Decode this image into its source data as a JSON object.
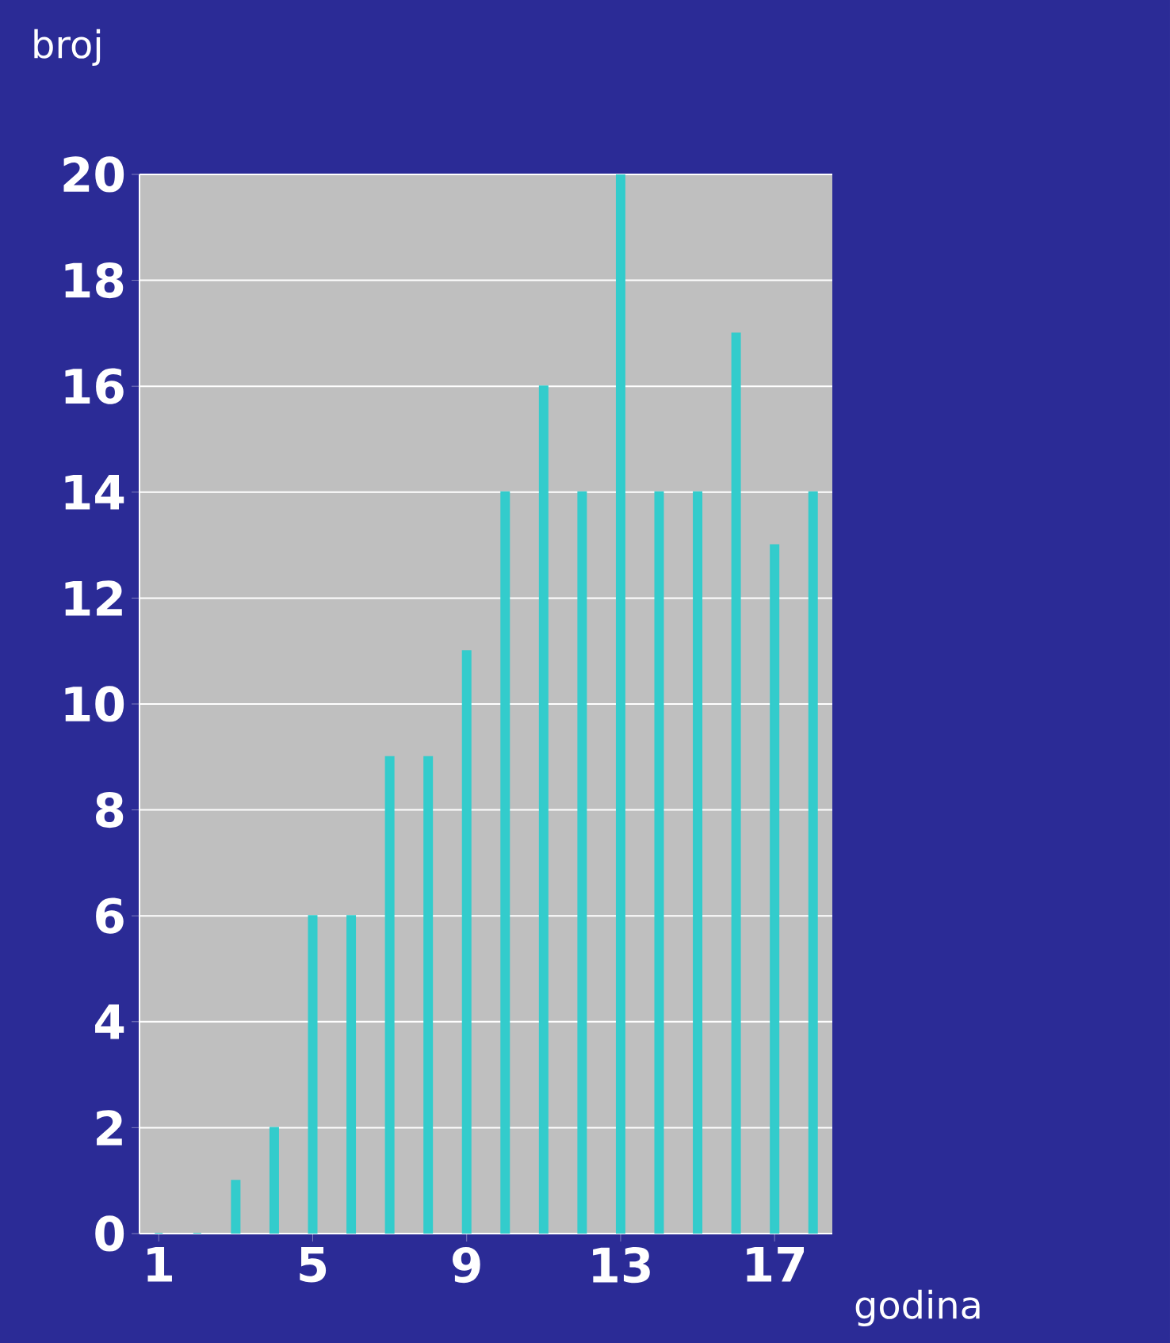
{
  "chart_data": {
    "type": "bar",
    "xlabel": "godina",
    "ylabel": "broj",
    "categories": [
      "1",
      null,
      null,
      null,
      "5",
      null,
      null,
      null,
      "9",
      null,
      null,
      null,
      "13",
      null,
      null,
      null,
      "17",
      null
    ],
    "values": [
      0,
      0,
      1,
      2,
      6,
      6,
      9,
      9,
      11,
      14,
      16,
      14,
      20,
      14,
      14,
      17,
      13,
      14
    ],
    "color": "#33cccc",
    "ylim": [
      0,
      20
    ],
    "yticks": [
      0,
      2,
      4,
      6,
      8,
      10,
      12,
      14,
      16,
      18,
      20
    ],
    "grid": "y"
  }
}
